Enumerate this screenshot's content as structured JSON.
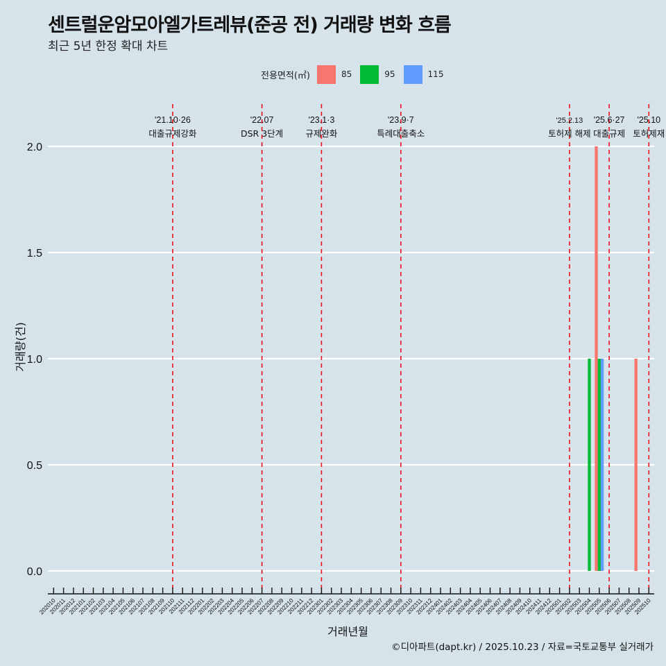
{
  "title": "센트럴운암모아엘가트레뷰(준공 전) 거래량 변화 흐름",
  "subtitle": "최근 5년 한정 확대 차트",
  "legend": {
    "title": "전용면적(㎡)",
    "items": [
      {
        "label": "85",
        "color": "#f8766d"
      },
      {
        "label": "95",
        "color": "#00ba38"
      },
      {
        "label": "115",
        "color": "#619cff"
      }
    ]
  },
  "caption": "©디아파트(dapt.kr) / 2025.10.23 / 자료=국토교통부 실거래가",
  "chart_data": {
    "type": "bar",
    "title": "센트럴운암모아엘가트레뷰(준공 전) 거래량 변화 흐름",
    "subtitle": "최근 5년 한정 확대 차트",
    "xlabel": "거래년월",
    "ylabel": "거래량(건)",
    "ylim": [
      0,
      2
    ],
    "yticks": [
      "0.0",
      "0.5",
      "1.0",
      "1.5",
      "2.0"
    ],
    "grid": "horizontal major",
    "legend_position": "top",
    "categories": [
      "202010",
      "202011",
      "202012",
      "202101",
      "202102",
      "202103",
      "202104",
      "202105",
      "202106",
      "202107",
      "202108",
      "202109",
      "202110",
      "202111",
      "202112",
      "202201",
      "202202",
      "202203",
      "202204",
      "202205",
      "202206",
      "202207",
      "202208",
      "202209",
      "202210",
      "202211",
      "202212",
      "202301",
      "202302",
      "202303",
      "202304",
      "202305",
      "202306",
      "202307",
      "202308",
      "202309",
      "202310",
      "202311",
      "202312",
      "202401",
      "202402",
      "202403",
      "202404",
      "202405",
      "202406",
      "202407",
      "202408",
      "202409",
      "202410",
      "202411",
      "202412",
      "202501",
      "202502",
      "202503",
      "202504",
      "202505",
      "202506",
      "202507",
      "202508",
      "202509",
      "202510"
    ],
    "series": [
      {
        "name": "85",
        "color": "#f8766d",
        "points": [
          {
            "x": "202505",
            "y": 2
          },
          {
            "x": "202509",
            "y": 1
          }
        ]
      },
      {
        "name": "95",
        "color": "#00ba38",
        "points": [
          {
            "x": "202504",
            "y": 1
          },
          {
            "x": "202505",
            "y": 1
          }
        ]
      },
      {
        "name": "115",
        "color": "#619cff",
        "points": [
          {
            "x": "202505",
            "y": 1
          }
        ]
      }
    ],
    "annotations": [
      {
        "x": "202110",
        "date": "'21.10·26",
        "label": "대출규제강화"
      },
      {
        "x": "202207",
        "date": "'22.07",
        "label": "DSR 3단계"
      },
      {
        "x": "202301",
        "date": "'23.1·3",
        "label": "규제완화"
      },
      {
        "x": "202309",
        "date": "'23.9·7",
        "label": "특례대출축소"
      },
      {
        "x": "202502",
        "date": "'25.2.13",
        "label": "토허제 해제",
        "small": true
      },
      {
        "x": "202506",
        "date": "'25.6·27",
        "label": "대출규제"
      },
      {
        "x": "202510",
        "date": "'25.10",
        "label": "토허제재"
      }
    ]
  }
}
